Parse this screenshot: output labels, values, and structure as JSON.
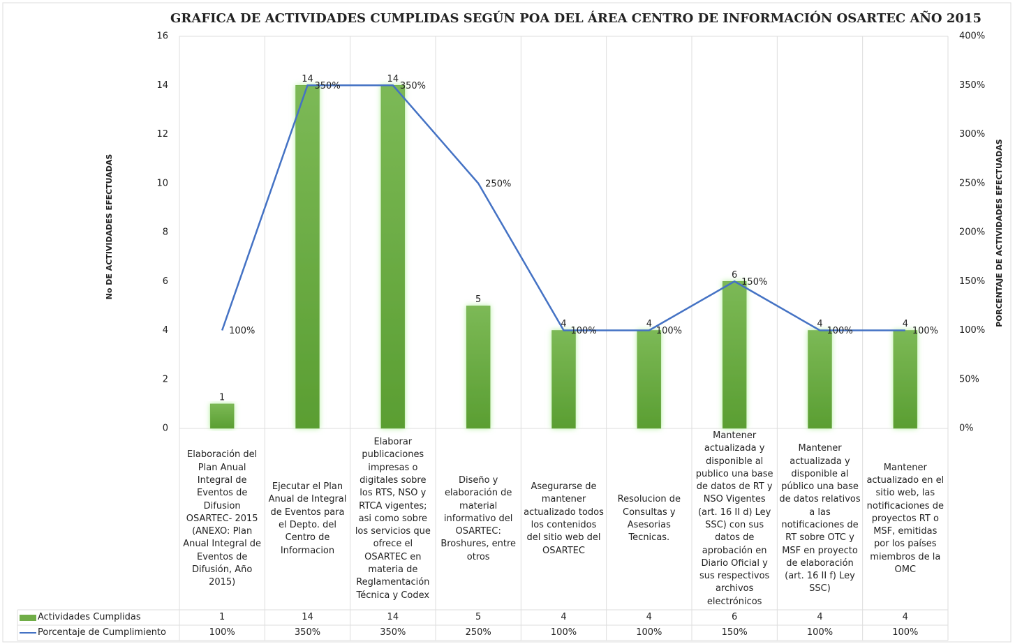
{
  "chart_data": {
    "type": "bar_line",
    "title": "GRAFICA DE ACTIVIDADES CUMPLIDAS SEGÚN POA DEL ÁREA CENTRO DE INFORMACIÓN OSARTEC AÑO 2015",
    "y_label": "No DE ACTIVIDADES EFECTUADAS",
    "y2_label": "PORCENTAJE  DE ACTIVIDADES EFECTUADAS",
    "categories": [
      "Elaboración del Plan  Anual Integral de Eventos de Difusion OSARTEC- 2015 (ANEXO: Plan Anual Integral de Eventos de Difusión, Año 2015)",
      "Ejecutar el Plan Anual de Integral de Eventos para el Depto. del Centro de Informacion",
      "Elaborar publicaciones impresas o digitales sobre los RTS, NSO y RTCA vigentes; asi como sobre los servicios que ofrece el OSARTEC en materia de Reglamentación Técnica y Codex",
      "Diseño y elaboración de material informativo del OSARTEC: Broshures, entre otros",
      "Asegurarse de mantener actualizado todos los contenidos del sitio web del OSARTEC",
      "Resolucion de Consultas y Asesorias Tecnicas.",
      "Mantener actualizada y disponible al publico una base de datos de RT y  NSO Vigentes (art. 16 II d) Ley SSC) con sus datos de aprobación en Diario Oficial y sus respectivos archivos electrónicos",
      "Mantener actualizada y disponible al público una base de datos relativos a las notificaciones de RT sobre OTC y MSF en proyecto de elaboración (art. 16 II f) Ley SSC)",
      "Mantener actualizado en el sitio web, las notificaciones de proyectos RT o MSF, emitidas por los países miembros de la OMC"
    ],
    "series": [
      {
        "name": "Actividades Cumplidas",
        "type": "bar",
        "color": "#70ad47",
        "values": [
          1,
          14,
          14,
          5,
          4,
          4,
          6,
          4,
          4
        ]
      },
      {
        "name": "Porcentaje de Cumplimiento",
        "type": "line",
        "axis": "y2",
        "color": "#4472c4",
        "values": [
          100,
          350,
          350,
          250,
          100,
          100,
          150,
          100,
          100
        ],
        "value_labels": [
          "100%",
          "350%",
          "350%",
          "250%",
          "100%",
          "100%",
          "150%",
          "100%",
          "100%"
        ]
      }
    ],
    "ylim": [
      0,
      16
    ],
    "yticks": [
      0,
      2,
      4,
      6,
      8,
      10,
      12,
      14,
      16
    ],
    "y2lim": [
      0,
      400
    ],
    "y2ticks": [
      {
        "value": 0,
        "label": "0%"
      },
      {
        "value": 50,
        "label": "50%"
      },
      {
        "value": 100,
        "label": "100%"
      },
      {
        "value": 150,
        "label": "150%"
      },
      {
        "value": 200,
        "label": "200%"
      },
      {
        "value": 250,
        "label": "250%"
      },
      {
        "value": 300,
        "label": "300%"
      },
      {
        "value": 350,
        "label": "350%"
      },
      {
        "value": 400,
        "label": "400%"
      }
    ]
  }
}
